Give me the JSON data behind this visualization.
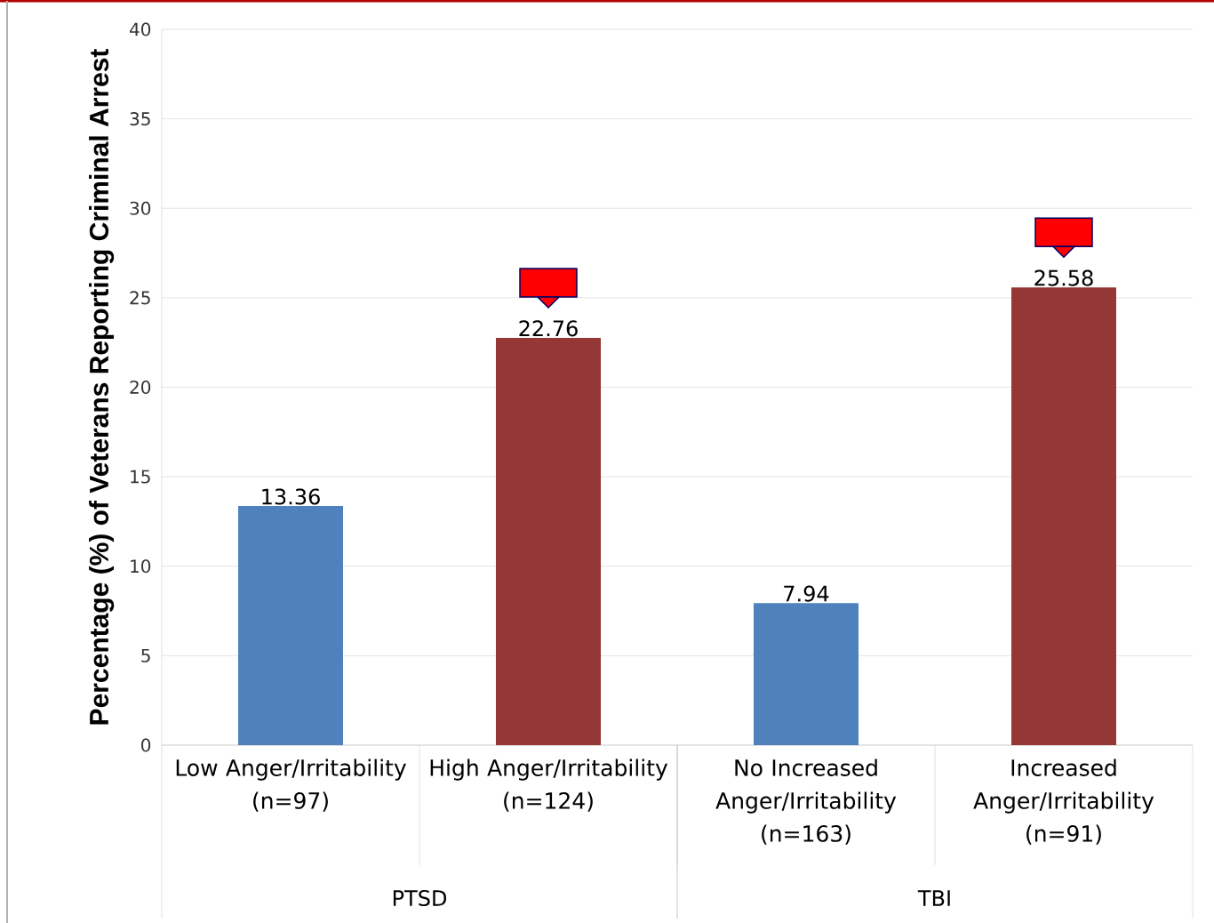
{
  "chart_data": {
    "type": "bar",
    "ylabel": "Percentage (%) of Veterans Reporting Criminal Arrest",
    "categories": [
      "Low Anger/Irritability (n=97)",
      "High Anger/Irritability (n=124)",
      "No Increased Anger/Irritability (n=163)",
      "Increased Anger/Irritability (n=91)"
    ],
    "values": [
      13.36,
      22.76,
      7.94,
      25.58
    ],
    "colors": [
      "#4f81bd",
      "#953735",
      "#4f81bd",
      "#953735"
    ],
    "data_labels": true,
    "ylim": [
      0,
      40
    ],
    "yticks": [
      0,
      5,
      10,
      15,
      20,
      25,
      30,
      35,
      40
    ],
    "grid": "y",
    "annotations": [
      "PTSD",
      "TBI"
    ]
  }
}
